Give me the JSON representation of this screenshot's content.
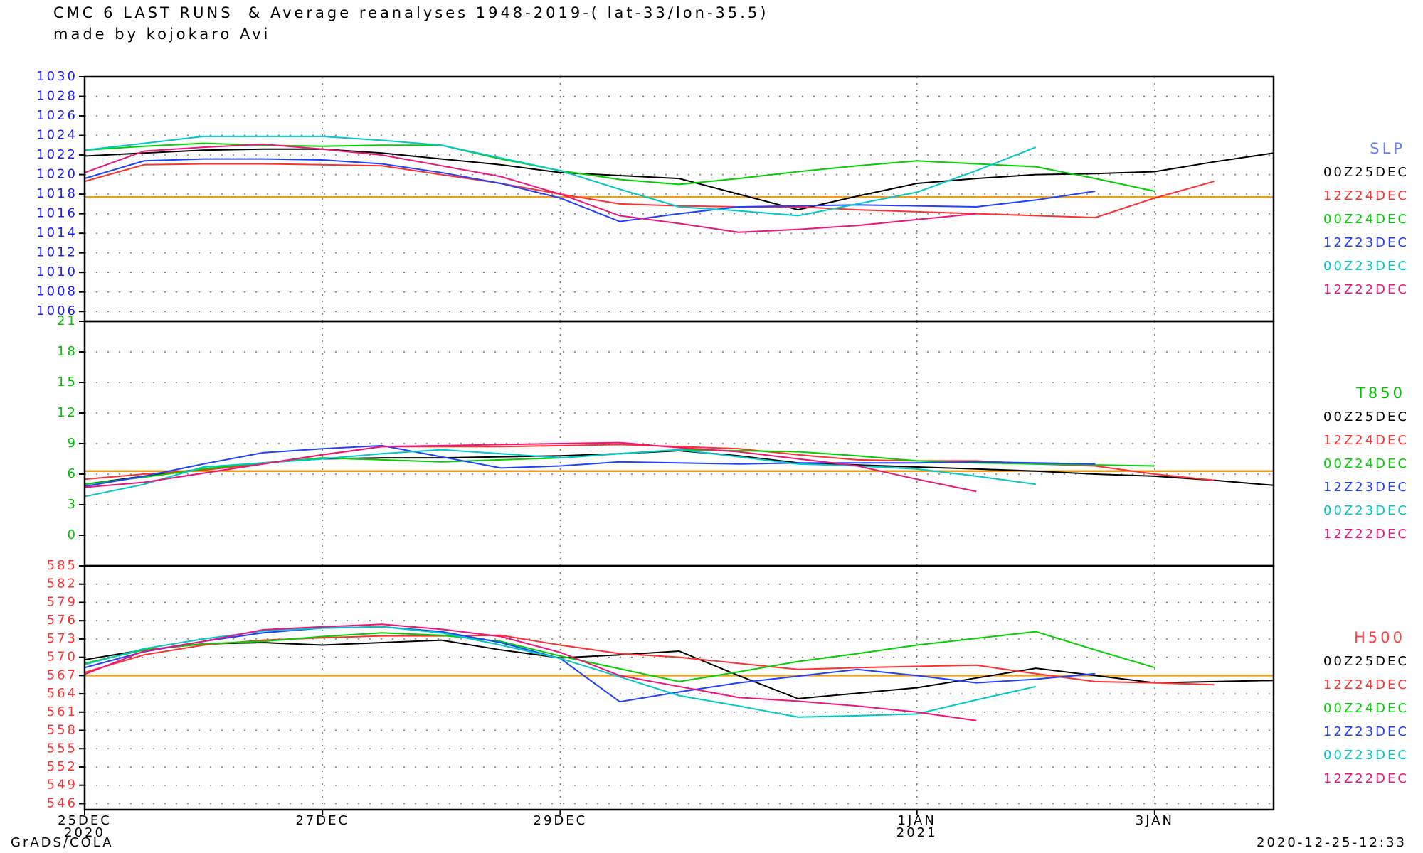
{
  "chart_data": [
    {
      "type": "line",
      "title": "CMC 6 LAST RUNS  & Average reanalyses 1948-2019-( lat-33/lon-35.5)",
      "subtitle": "made by kojokaro Avi",
      "label": "SLP",
      "label_color": "#6a7ff0",
      "tick_color": "#1a1aff",
      "grid": true,
      "ylim": [
        1005,
        1030
      ],
      "yticks": [
        1006,
        1008,
        1010,
        1012,
        1014,
        1016,
        1018,
        1020,
        1022,
        1024,
        1026,
        1028,
        1030
      ],
      "average": 1017.7,
      "average_color": "#e8a020",
      "series": [
        {
          "name": "00Z25DEC",
          "color": "#000000",
          "values": [
            1021.9,
            1022.2,
            1022.5,
            1022.6,
            1022.6,
            1022.2,
            1021.6,
            1021.0,
            1020.2,
            1019.9,
            1019.6,
            1018.0,
            1016.4,
            1017.8,
            1019.1,
            1019.6,
            1020.0,
            1020.1,
            1020.3,
            1021.3,
            1022.2
          ]
        },
        {
          "name": "12Z24DEC",
          "color": "#ff3030",
          "values": [
            1019.3,
            1021.0,
            1021.1,
            1021.1,
            1021.0,
            1020.9,
            1020.0,
            1019.1,
            1018.0,
            1017.0,
            1016.8,
            1016.7,
            1016.7,
            1016.4,
            1016.2,
            1016.0,
            1015.8,
            1015.6,
            1017.6,
            1019.3,
            null
          ]
        },
        {
          "name": "00Z24DEC",
          "color": "#00d000",
          "values": [
            1022.5,
            1022.9,
            1023.2,
            1023.0,
            1022.9,
            1023.0,
            1023.0,
            1021.6,
            1020.4,
            1019.5,
            1019.0,
            1019.6,
            1020.3,
            1020.9,
            1021.4,
            1021.1,
            1020.8,
            1019.6,
            1018.3,
            null,
            null
          ]
        },
        {
          "name": "12Z23DEC",
          "color": "#2040ff",
          "values": [
            1019.6,
            1021.4,
            1021.6,
            1021.6,
            1021.5,
            1021.1,
            1020.2,
            1019.1,
            1017.6,
            1015.2,
            1016.0,
            1016.7,
            1016.8,
            1016.9,
            1016.8,
            1016.7,
            1017.4,
            1018.3,
            null,
            null,
            null
          ]
        },
        {
          "name": "00Z23DEC",
          "color": "#00c8c8",
          "values": [
            1022.5,
            1023.2,
            1023.9,
            1023.9,
            1023.9,
            1023.5,
            1023.0,
            1021.7,
            1020.4,
            1018.5,
            1016.7,
            1016.3,
            1015.8,
            1017.0,
            1018.2,
            1020.4,
            1022.8,
            null,
            null,
            null,
            null
          ]
        },
        {
          "name": "12Z22DEC",
          "color": "#f0147a",
          "values": [
            1020.2,
            1022.4,
            1022.8,
            1023.1,
            1022.6,
            1022.0,
            1020.9,
            1019.8,
            1018.0,
            1015.8,
            1015.0,
            1014.1,
            1014.4,
            1014.8,
            1015.4,
            1016.0,
            null,
            null,
            null,
            null,
            null
          ]
        }
      ]
    },
    {
      "type": "line",
      "label": "T850",
      "label_color": "#00c000",
      "tick_color": "#00c000",
      "grid": true,
      "ylim": [
        -3,
        21
      ],
      "yticks": [
        0,
        3,
        6,
        9,
        12,
        15,
        18,
        21
      ],
      "average": 6.3,
      "average_color": "#e8a020",
      "series": [
        {
          "name": "00Z25DEC",
          "color": "#000000",
          "values": [
            5.0,
            5.8,
            6.5,
            7.1,
            7.5,
            7.6,
            7.6,
            7.7,
            7.8,
            8.0,
            8.3,
            7.8,
            7.1,
            6.9,
            6.7,
            6.5,
            6.3,
            6.0,
            5.8,
            5.4,
            4.9
          ]
        },
        {
          "name": "12Z24DEC",
          "color": "#ff3030",
          "values": [
            5.5,
            6.0,
            6.4,
            7.0,
            7.9,
            8.7,
            8.7,
            8.7,
            8.8,
            8.9,
            8.7,
            8.5,
            7.9,
            7.4,
            7.3,
            7.3,
            7.0,
            6.8,
            6.0,
            5.4,
            null
          ]
        },
        {
          "name": "00Z24DEC",
          "color": "#00d000",
          "values": [
            5.0,
            5.7,
            6.5,
            7.1,
            7.6,
            7.4,
            7.2,
            7.4,
            7.6,
            8.0,
            8.4,
            8.3,
            8.2,
            7.8,
            7.3,
            7.1,
            7.0,
            6.9,
            6.8,
            null,
            null
          ]
        },
        {
          "name": "12Z23DEC",
          "color": "#2040ff",
          "values": [
            4.8,
            5.8,
            7.0,
            8.1,
            8.5,
            8.8,
            7.7,
            6.6,
            6.8,
            7.2,
            7.1,
            7.0,
            7.1,
            7.1,
            7.1,
            7.2,
            7.1,
            7.0,
            null,
            null,
            null
          ]
        },
        {
          "name": "00Z23DEC",
          "color": "#00c8c8",
          "values": [
            3.8,
            5.0,
            6.7,
            7.1,
            7.5,
            8.0,
            8.4,
            8.0,
            7.6,
            8.0,
            8.4,
            7.7,
            7.0,
            6.8,
            6.5,
            5.8,
            5.0,
            null,
            null,
            null,
            null
          ]
        },
        {
          "name": "12Z22DEC",
          "color": "#f0147a",
          "values": [
            4.7,
            5.2,
            6.1,
            7.0,
            7.9,
            8.7,
            8.8,
            8.9,
            9.0,
            9.1,
            8.6,
            8.2,
            7.5,
            6.8,
            5.5,
            4.3,
            null,
            null,
            null,
            null,
            null
          ]
        }
      ]
    },
    {
      "type": "line",
      "label": "H500",
      "label_color": "#ff4040",
      "tick_color": "#ff3030",
      "grid": true,
      "ylim": [
        545,
        585
      ],
      "yticks": [
        546,
        549,
        552,
        555,
        558,
        561,
        564,
        567,
        570,
        573,
        576,
        579,
        582,
        585
      ],
      "average": 567.0,
      "average_color": "#e8a020",
      "categories": [
        "25DEC",
        null,
        null,
        null,
        "27DEC",
        null,
        null,
        null,
        "29DEC",
        null,
        null,
        null,
        null,
        null,
        "1JAN",
        null,
        null,
        null,
        "3JAN",
        null,
        null
      ],
      "category_sublabels": [
        "2020",
        null,
        null,
        null,
        null,
        null,
        null,
        null,
        null,
        null,
        null,
        null,
        null,
        null,
        "2021",
        null,
        null,
        null,
        null,
        null,
        null
      ],
      "series": [
        {
          "name": "00Z25DEC",
          "color": "#000000",
          "values": [
            569.6,
            571.2,
            572.2,
            572.4,
            572.0,
            572.4,
            572.8,
            571.2,
            569.9,
            570.4,
            571.0,
            567.0,
            563.2,
            564.1,
            565.0,
            566.6,
            568.2,
            567.0,
            565.8,
            566.0,
            566.2
          ]
        },
        {
          "name": "12Z24DEC",
          "color": "#ff3030",
          "values": [
            567.5,
            570.4,
            572.0,
            572.8,
            573.2,
            573.5,
            573.5,
            573.6,
            572.0,
            570.6,
            570.0,
            569.0,
            568.0,
            568.3,
            568.5,
            568.7,
            567.3,
            566.0,
            565.8,
            565.5,
            null
          ]
        },
        {
          "name": "00Z24DEC",
          "color": "#00d000",
          "values": [
            569.0,
            571.2,
            572.2,
            572.6,
            573.4,
            574.0,
            573.6,
            572.6,
            570.2,
            568.1,
            566.0,
            567.6,
            569.3,
            570.6,
            572.0,
            573.1,
            574.2,
            571.2,
            568.3,
            null,
            null
          ]
        },
        {
          "name": "12Z23DEC",
          "color": "#2040ff",
          "values": [
            568.3,
            570.9,
            572.6,
            574.0,
            574.8,
            575.0,
            574.2,
            572.4,
            569.8,
            562.7,
            564.3,
            565.8,
            566.9,
            568.0,
            567.0,
            565.8,
            566.4,
            567.3,
            null,
            null,
            null
          ]
        },
        {
          "name": "00Z23DEC",
          "color": "#00c8c8",
          "values": [
            568.8,
            571.4,
            573.0,
            574.3,
            574.8,
            575.0,
            574.0,
            572.0,
            569.8,
            566.8,
            563.7,
            562.0,
            560.2,
            560.4,
            560.7,
            563.0,
            565.2,
            null,
            null,
            null,
            null
          ]
        },
        {
          "name": "12Z22DEC",
          "color": "#f0147a",
          "values": [
            567.2,
            571.0,
            572.6,
            574.5,
            575.0,
            575.4,
            574.6,
            573.4,
            570.8,
            567.0,
            565.2,
            563.4,
            562.8,
            562.0,
            561.0,
            559.6,
            null,
            null,
            null,
            null,
            null
          ]
        }
      ]
    }
  ],
  "footer": {
    "left": "GrADS/COLA",
    "right": "2020-12-25-12:33"
  }
}
